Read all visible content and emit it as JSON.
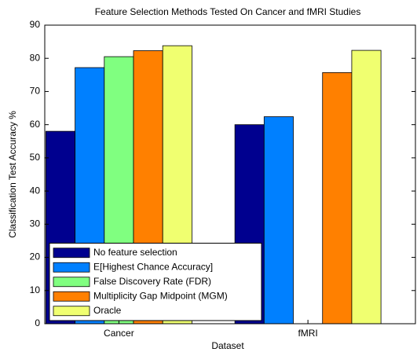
{
  "chart_data": {
    "type": "bar",
    "title": "Feature Selection Methods Tested On Cancer and fMRI Studies",
    "x_label": "Dataset",
    "y_label": "Classification Test Accuracy %",
    "categories": [
      "Cancer",
      "fMRI"
    ],
    "series": [
      {
        "name": "No feature selection",
        "color": "#00008f",
        "values": [
          58.0,
          60.0
        ]
      },
      {
        "name": "E[Highest Chance Accuracy]",
        "color": "#0080ff",
        "values": [
          77.2,
          62.4
        ]
      },
      {
        "name": "False Discovery Rate (FDR)",
        "color": "#80ff80",
        "values": [
          80.5,
          null
        ]
      },
      {
        "name": "Multiplicity Gap Midpoint (MGM)",
        "color": "#ff8000",
        "values": [
          82.3,
          75.7
        ]
      },
      {
        "name": "Oracle",
        "color": "#f0ff70",
        "values": [
          83.8,
          82.4
        ]
      }
    ],
    "ylim": [
      0,
      90
    ],
    "yticks": [
      0,
      10,
      20,
      30,
      40,
      50,
      60,
      70,
      80,
      90
    ],
    "legend": "lower left"
  }
}
